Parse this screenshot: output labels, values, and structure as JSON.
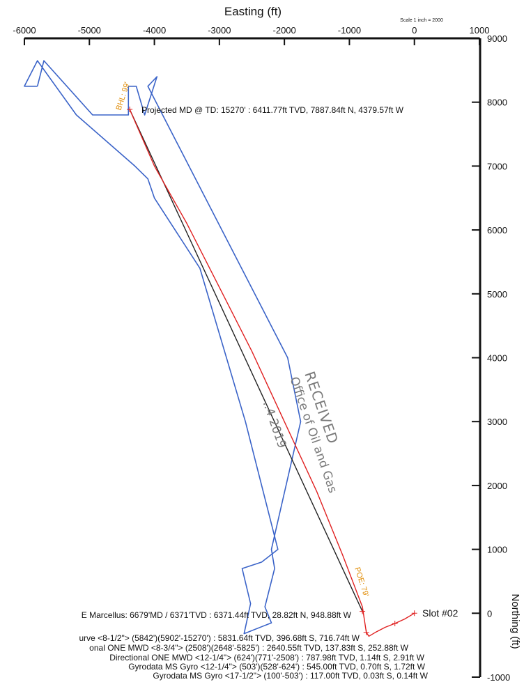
{
  "chart_data": {
    "type": "line",
    "title": "Easting (ft)",
    "subtitle": "Scale 1 inch = 2000",
    "xlabel": "Easting (ft)",
    "ylabel": "Northing (ft)",
    "xlim": [
      -6000,
      1000
    ],
    "ylim": [
      -1000,
      9000
    ],
    "x_ticks": [
      "-6000",
      "-5000",
      "-4000",
      "-3000",
      "-2000",
      "-1000",
      "0",
      "1000"
    ],
    "y_ticks": [
      "9000",
      "8000",
      "7000",
      "6000",
      "5000",
      "4000",
      "3000",
      "2000",
      "1000",
      "0",
      "-1000"
    ],
    "grid": false,
    "colors": {
      "wellpath": "#e02020",
      "plan": "#222222",
      "lease_boundary": "#3a63c8",
      "label": "#e08a00",
      "text": "#111111"
    },
    "series": [
      {
        "name": "",
        "color": "#e02020",
        "x": [
          0,
          -150,
          -300,
          -450,
          -600,
          -700,
          -740,
          -800,
          -1100,
          -1500,
          -2000,
          -2500,
          -3000,
          -3500,
          -4000,
          -4380
        ],
        "y": [
          0,
          -90,
          -160,
          -220,
          -300,
          -360,
          -300,
          100,
          900,
          1900,
          3000,
          4100,
          5100,
          6100,
          7000,
          7888
        ]
      },
      {
        "name": "",
        "color": "#222222",
        "x": [
          -800,
          -4380
        ],
        "y": [
          29,
          7888
        ]
      },
      {
        "name": "",
        "color": "#3a63c8",
        "x": [
          -5800,
          -5700,
          -4950,
          -4400,
          -4400,
          -4280,
          -4150,
          -3960,
          -4100,
          -1950,
          -1750,
          -2200,
          -2150,
          -2300,
          -2200,
          -2620,
          -2520,
          -2650,
          -2350,
          -2100,
          -2600,
          -3300,
          -4000,
          -4100,
          -4300,
          -5200,
          -5800,
          -6000,
          -5800
        ],
        "y": [
          8250,
          8650,
          7800,
          7800,
          8250,
          8250,
          7800,
          8400,
          8250,
          4000,
          3000,
          1000,
          700,
          100,
          -150,
          -320,
          150,
          700,
          800,
          1000,
          3000,
          5400,
          6500,
          6800,
          7000,
          7800,
          8650,
          8250,
          8250
        ]
      }
    ],
    "annotations": [
      {
        "text": "BHL: 99'",
        "x": -4380,
        "y": 7888
      },
      {
        "text": "POE: 79'",
        "x": -800,
        "y": 29
      },
      {
        "text": "Projected MD @ TD: 15270' : 6411.77ft TVD, 7887.84ft N, 4379.57ft W",
        "x": -4380,
        "y": 7888
      },
      {
        "text": "Slot #02",
        "x": 0,
        "y": 0
      },
      {
        "text": "E Marcellus: 6679'MD / 6371'TVD : 6371.44ft TVD, 28.82ft N, 948.88ft W",
        "x": -949,
        "y": 29
      },
      {
        "text": "urve <8-1/2\"> (5842')(5902'-15270') : 5831.64ft TVD, 396.68ft S, 716.74ft W",
        "x": -717,
        "y": -397
      },
      {
        "text": "onal ONE MWD <8-3/4\"> (2508')(2648'-5825') : 2640.55ft TVD, 137.83ft S, 252.88ft W",
        "x": -253,
        "y": -138
      },
      {
        "text": "Directional ONE MWD <12-1/4\"> (624')(771'-2508') : 787.98ft TVD, 1.14ft S, 2.91ft W",
        "x": -3,
        "y": -1
      },
      {
        "text": "Gyrodata MS Gyro <12-1/4\"> (503')(528'-624') : 545.00ft TVD, 0.70ft S, 1.72ft W",
        "x": -2,
        "y": -1
      },
      {
        "text": "Gyrodata MS Gyro <17-1/2\"> (100'-503') : 117.00ft TVD, 0.03ft S, 0.14ft W",
        "x": 0,
        "y": 0
      }
    ]
  },
  "stamp": {
    "line1": "RECEIVED",
    "line2": "Office of Oil and Gas",
    "line3": "..4 2019"
  }
}
